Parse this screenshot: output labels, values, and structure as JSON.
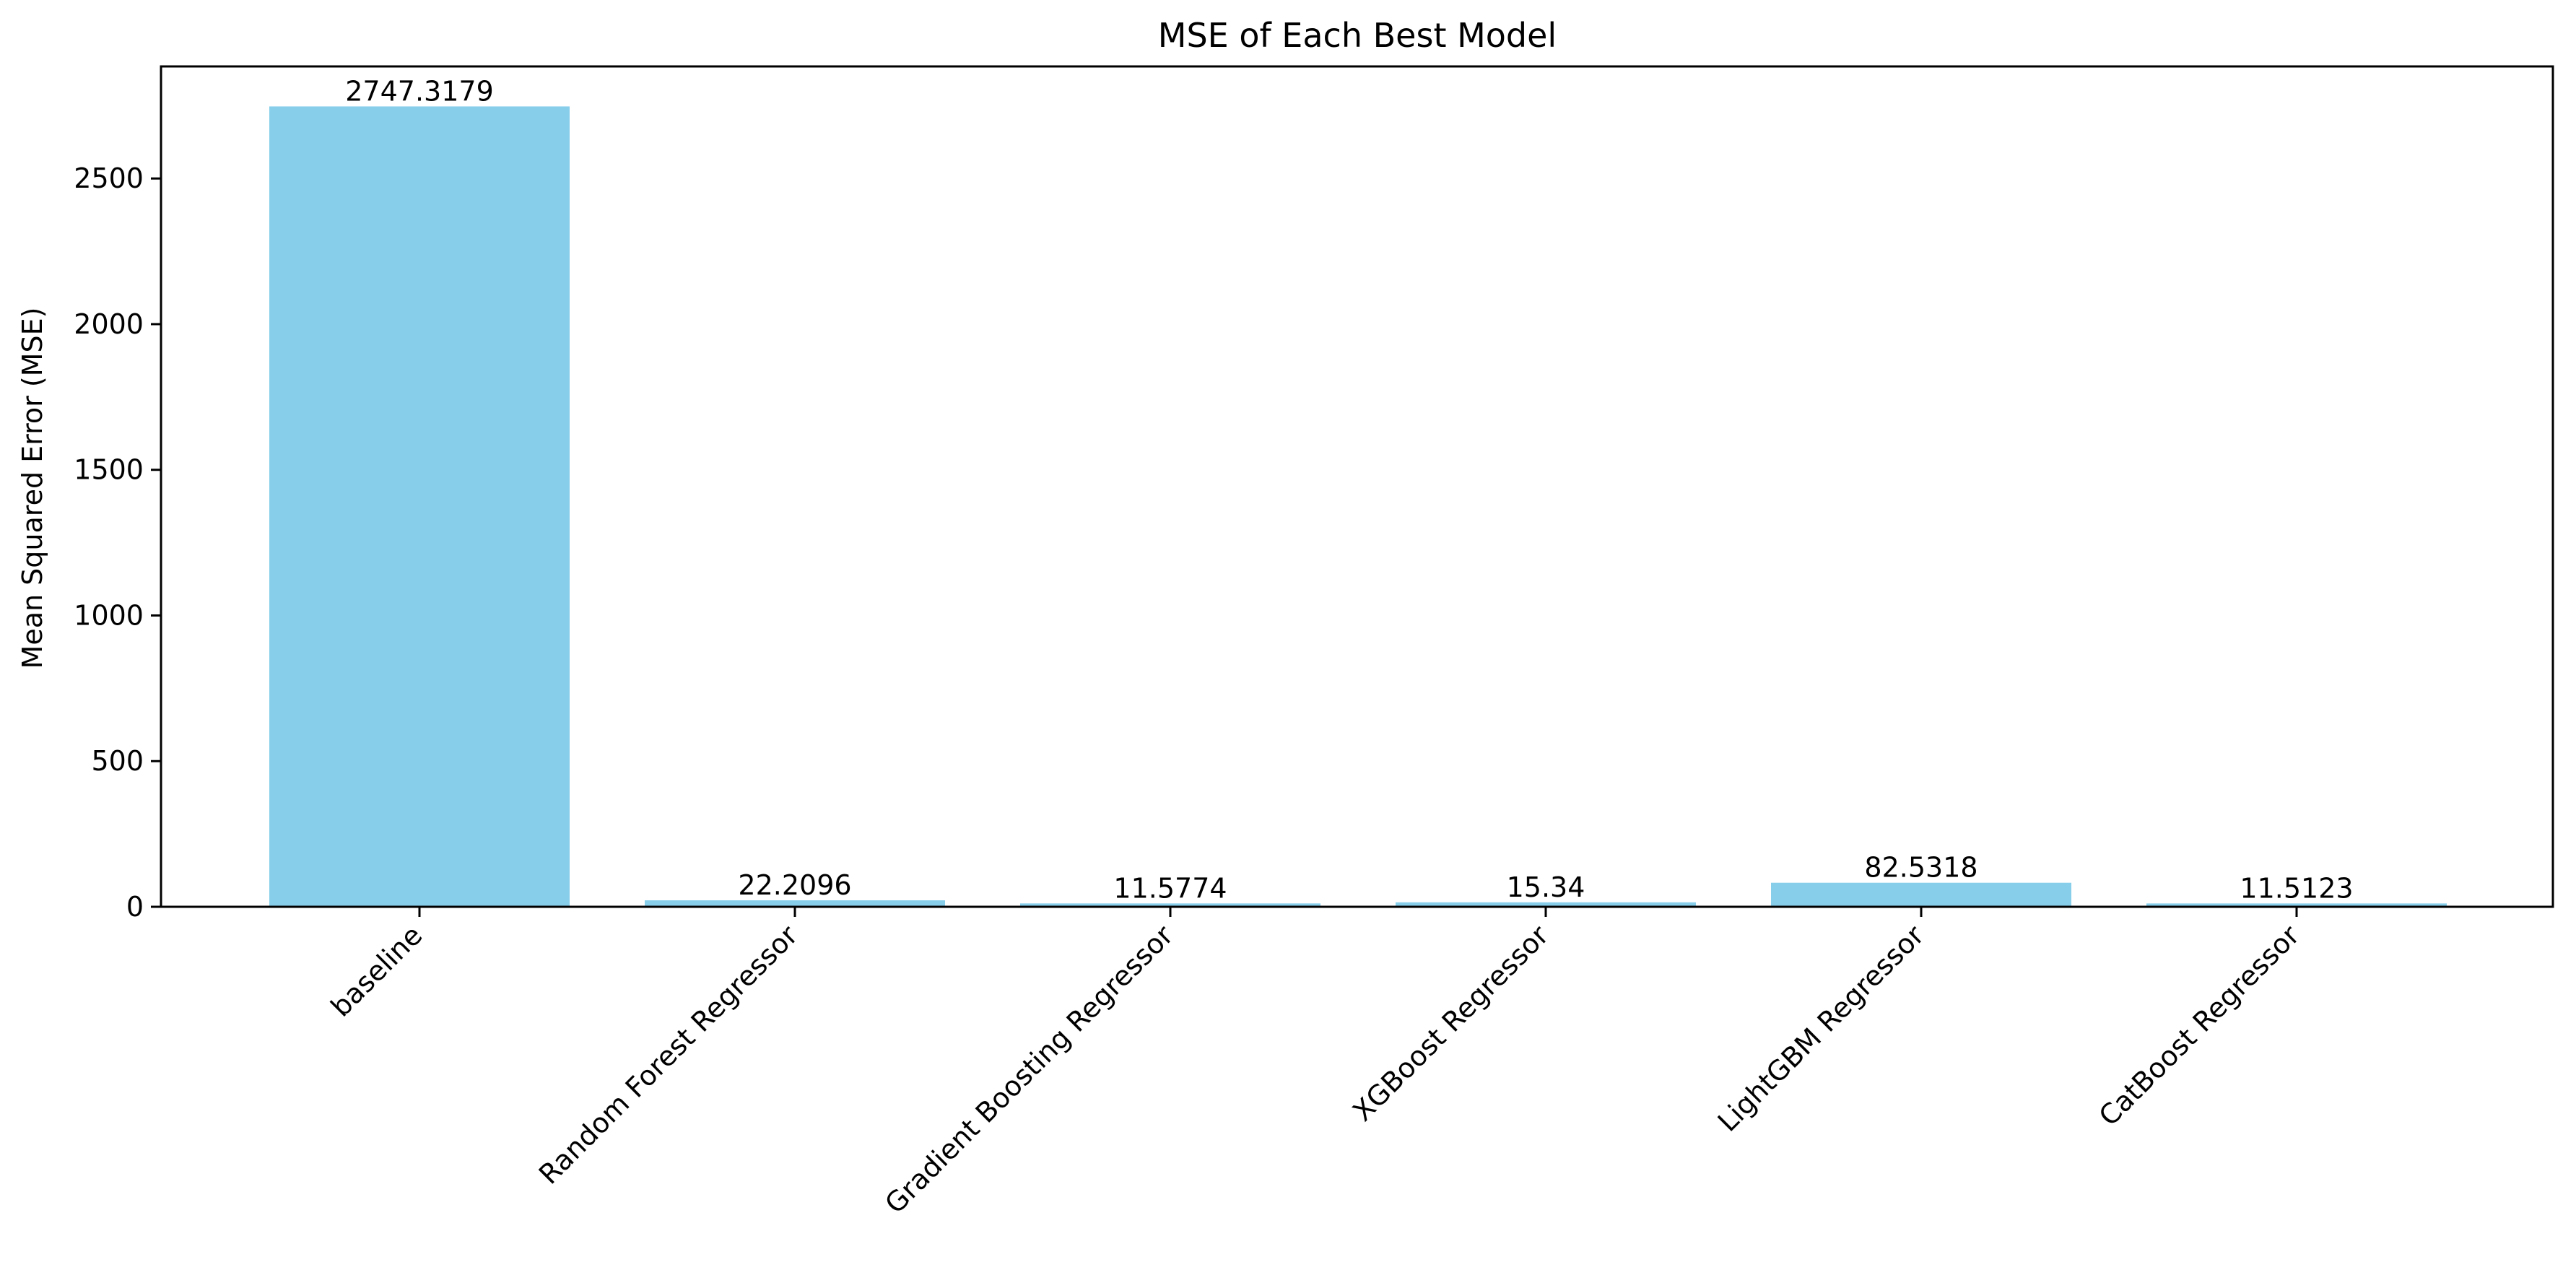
{
  "chart_data": {
    "type": "bar",
    "title": "MSE of Each Best Model",
    "xlabel": "",
    "ylabel": "Mean Squared Error (MSE)",
    "categories": [
      "baseline",
      "Random Forest Regressor",
      "Gradient Boosting Regressor",
      "XGBoost Regressor",
      "LightGBM Regressor",
      "CatBoost Regressor"
    ],
    "values": [
      2747.3179,
      22.2096,
      11.5774,
      15.34,
      82.5318,
      11.5123
    ],
    "value_labels": [
      "2747.3179",
      "22.2096",
      "11.5774",
      "15.34",
      "82.5318",
      "11.5123"
    ],
    "ylim": [
      0,
      2884.68
    ],
    "yticks": [
      0,
      500,
      1000,
      1500,
      2000,
      2500
    ],
    "grid": false,
    "bar_color": "#87CEEB",
    "axis_color": "#000000"
  }
}
